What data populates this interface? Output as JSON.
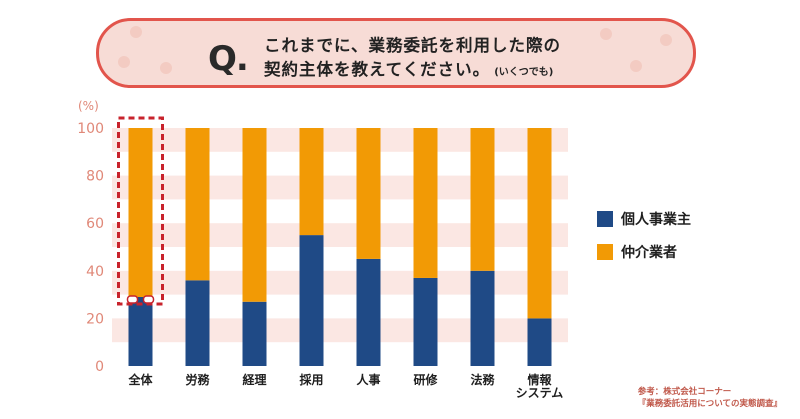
{
  "question": {
    "letter": "Q.",
    "line1": "これまでに、業務委託を利用した際の",
    "line2": "契約主体を教えてください。",
    "note": "(いくつでも)"
  },
  "colors": {
    "individual": "#1f4a86",
    "agency": "#f29a05",
    "banner_bg": "#f7dcd6",
    "banner_border": "#e2554c",
    "band": "#fbe7e3",
    "axis_text": "#e08878",
    "highlight": "#c8232c"
  },
  "chart_data": {
    "type": "bar",
    "stacked": true,
    "ylabel": "(%)",
    "ylim": [
      0,
      100
    ],
    "yticks": [
      0,
      20,
      40,
      60,
      80,
      100
    ],
    "categories": [
      "全体",
      "労務",
      "経理",
      "採用",
      "人事",
      "研修",
      "法務",
      "情報\nシステム"
    ],
    "series": [
      {
        "name": "個人事業主",
        "values": [
          29,
          36,
          27,
          55,
          45,
          37,
          40,
          20
        ]
      },
      {
        "name": "仲介業者",
        "values": [
          71,
          64,
          73,
          45,
          55,
          63,
          60,
          80
        ]
      }
    ],
    "highlighted_category": "全体",
    "legend_position": "right",
    "grid": "horizontal bands"
  },
  "source": {
    "line1": "参考：株式会社コーナー",
    "line2": "『業務委託活用についての実態調査』"
  }
}
